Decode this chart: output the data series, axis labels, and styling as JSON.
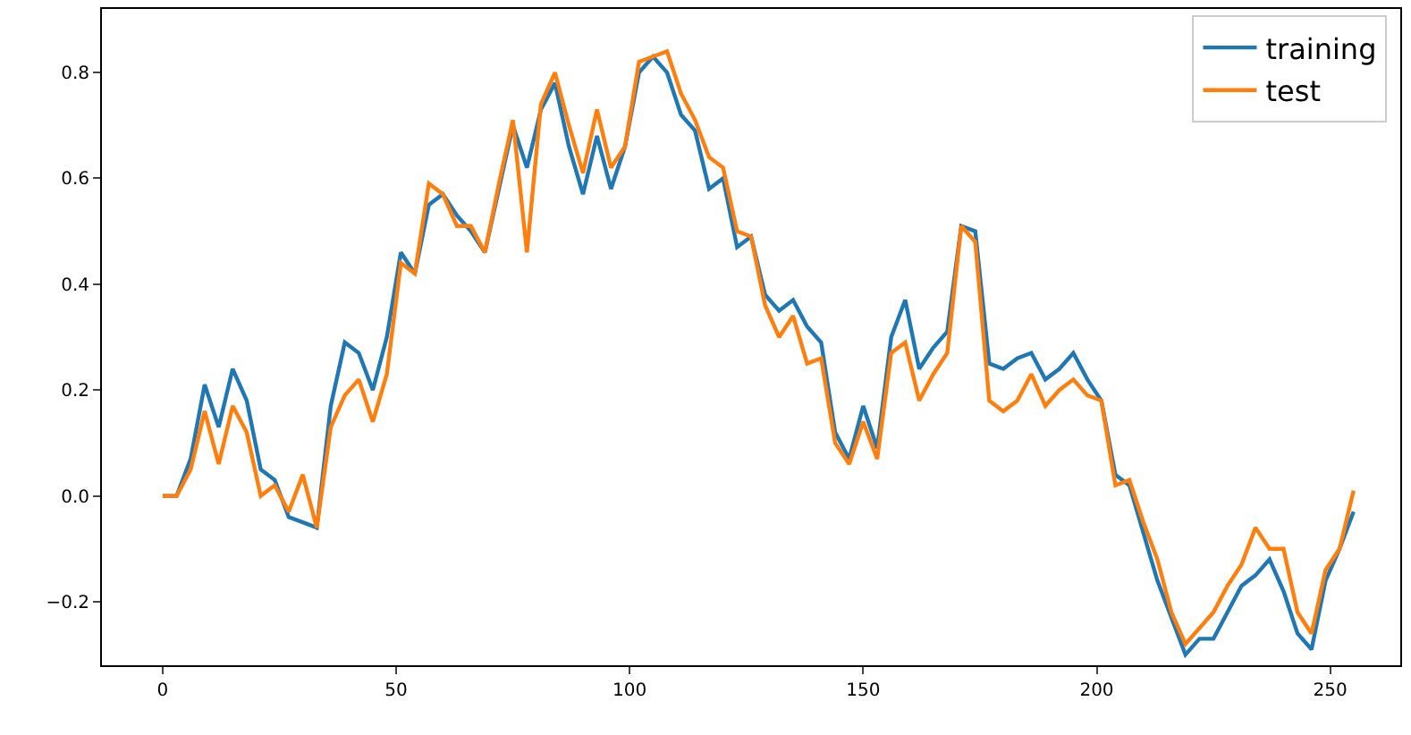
{
  "chart_data": {
    "type": "line",
    "x": [
      0,
      3,
      6,
      9,
      12,
      15,
      18,
      21,
      24,
      27,
      30,
      33,
      36,
      39,
      42,
      45,
      48,
      51,
      54,
      57,
      60,
      63,
      66,
      69,
      72,
      75,
      78,
      81,
      84,
      87,
      90,
      93,
      96,
      99,
      102,
      105,
      108,
      111,
      114,
      117,
      120,
      123,
      126,
      129,
      132,
      135,
      138,
      141,
      144,
      147,
      150,
      153,
      156,
      159,
      162,
      165,
      168,
      171,
      174,
      177,
      180,
      183,
      186,
      189,
      192,
      195,
      198,
      201,
      204,
      207,
      210,
      213,
      216,
      219,
      222,
      225,
      228,
      231,
      234,
      237,
      240,
      243,
      246,
      249,
      252,
      255
    ],
    "series": [
      {
        "name": "training",
        "color": "#1f77b4",
        "values": [
          0.0,
          0.0,
          0.07,
          0.21,
          0.13,
          0.24,
          0.18,
          0.05,
          0.03,
          -0.04,
          -0.05,
          -0.06,
          0.17,
          0.29,
          0.27,
          0.2,
          0.3,
          0.46,
          0.42,
          0.55,
          0.57,
          0.53,
          0.5,
          0.46,
          0.58,
          0.7,
          0.62,
          0.73,
          0.78,
          0.66,
          0.57,
          0.68,
          0.58,
          0.66,
          0.8,
          0.83,
          0.8,
          0.72,
          0.69,
          0.58,
          0.6,
          0.47,
          0.49,
          0.38,
          0.35,
          0.37,
          0.32,
          0.29,
          0.12,
          0.07,
          0.17,
          0.09,
          0.3,
          0.37,
          0.24,
          0.28,
          0.31,
          0.51,
          0.5,
          0.25,
          0.24,
          0.26,
          0.27,
          0.22,
          0.24,
          0.27,
          0.22,
          0.18,
          0.04,
          0.02,
          -0.07,
          -0.16,
          -0.23,
          -0.3,
          -0.27,
          -0.27,
          -0.22,
          -0.17,
          -0.15,
          -0.12,
          -0.18,
          -0.26,
          -0.29,
          -0.16,
          -0.1,
          -0.03
        ]
      },
      {
        "name": "test",
        "color": "#ff7f0e",
        "values": [
          0.0,
          0.0,
          0.05,
          0.16,
          0.06,
          0.17,
          0.12,
          0.0,
          0.02,
          -0.03,
          0.04,
          -0.06,
          0.13,
          0.19,
          0.22,
          0.14,
          0.23,
          0.44,
          0.42,
          0.59,
          0.57,
          0.51,
          0.51,
          0.46,
          0.59,
          0.71,
          0.46,
          0.74,
          0.8,
          0.7,
          0.61,
          0.73,
          0.62,
          0.66,
          0.82,
          0.83,
          0.84,
          0.76,
          0.71,
          0.64,
          0.62,
          0.5,
          0.49,
          0.36,
          0.3,
          0.34,
          0.25,
          0.26,
          0.1,
          0.06,
          0.14,
          0.07,
          0.27,
          0.29,
          0.18,
          0.23,
          0.27,
          0.51,
          0.48,
          0.18,
          0.16,
          0.18,
          0.23,
          0.17,
          0.2,
          0.22,
          0.19,
          0.18,
          0.02,
          0.03,
          -0.05,
          -0.12,
          -0.22,
          -0.28,
          -0.25,
          -0.22,
          -0.17,
          -0.13,
          -0.06,
          -0.1,
          -0.1,
          -0.22,
          -0.26,
          -0.14,
          -0.1,
          0.01
        ]
      }
    ],
    "xlim": [
      -13,
      265
    ],
    "xticks": [
      0,
      50,
      100,
      150,
      200,
      250
    ],
    "ylim": [
      -0.32,
      0.92
    ],
    "yticks": [
      {
        "value": -0.2,
        "label": "−0.2"
      },
      {
        "value": 0,
        "label": "0.0"
      },
      {
        "value": 0.2,
        "label": "0.2"
      },
      {
        "value": 0.4,
        "label": "0.4"
      },
      {
        "value": 0.6,
        "label": "0.6"
      },
      {
        "value": 0.8,
        "label": "0.8"
      }
    ],
    "legend": "top right",
    "marker": "none",
    "line_style": "solid"
  }
}
